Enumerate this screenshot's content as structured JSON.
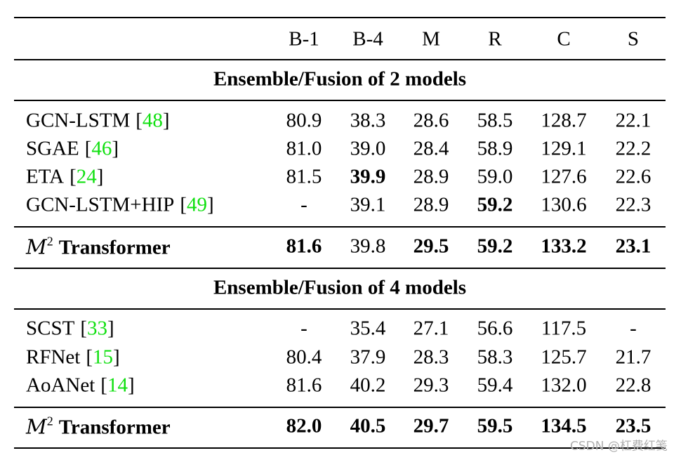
{
  "columns": [
    "B-1",
    "B-4",
    "M",
    "R",
    "C",
    "S"
  ],
  "sections": [
    {
      "title": "Ensemble/Fusion of 2 models",
      "rows": [
        {
          "name": "GCN-LSTM",
          "ref": "[48]",
          "cells": [
            "80.9",
            "38.3",
            "28.6",
            "58.5",
            "128.7",
            "22.1"
          ],
          "bold": [
            false,
            false,
            false,
            false,
            false,
            false
          ]
        },
        {
          "name": "SGAE",
          "ref": "[46]",
          "cells": [
            "81.0",
            "39.0",
            "28.4",
            "58.9",
            "129.1",
            "22.2"
          ],
          "bold": [
            false,
            false,
            false,
            false,
            false,
            false
          ]
        },
        {
          "name": "ETA",
          "ref": "[24]",
          "cells": [
            "81.5",
            "39.9",
            "28.9",
            "59.0",
            "127.6",
            "22.6"
          ],
          "bold": [
            false,
            true,
            false,
            false,
            false,
            false
          ]
        },
        {
          "name": "GCN-LSTM+HIP",
          "ref": "[49]",
          "cells": [
            "-",
            "39.1",
            "28.9",
            "59.2",
            "130.6",
            "22.3"
          ],
          "bold": [
            false,
            false,
            false,
            true,
            false,
            false
          ]
        }
      ],
      "ours": {
        "symbol": "M",
        "sup": "2",
        "name": "Transformer",
        "cells": [
          "81.6",
          "39.8",
          "29.5",
          "59.2",
          "133.2",
          "23.1"
        ],
        "bold": [
          true,
          false,
          true,
          true,
          true,
          true
        ]
      }
    },
    {
      "title": "Ensemble/Fusion of 4 models",
      "rows": [
        {
          "name": "SCST",
          "ref": "[33]",
          "cells": [
            "-",
            "35.4",
            "27.1",
            "56.6",
            "117.5",
            "-"
          ],
          "bold": [
            false,
            false,
            false,
            false,
            false,
            false
          ]
        },
        {
          "name": "RFNet",
          "ref": "[15]",
          "cells": [
            "80.4",
            "37.9",
            "28.3",
            "58.3",
            "125.7",
            "21.7"
          ],
          "bold": [
            false,
            false,
            false,
            false,
            false,
            false
          ]
        },
        {
          "name": "AoANet",
          "ref": "[14]",
          "cells": [
            "81.6",
            "40.2",
            "29.3",
            "59.4",
            "132.0",
            "22.8"
          ],
          "bold": [
            false,
            false,
            false,
            false,
            false,
            false
          ]
        }
      ],
      "ours": {
        "symbol": "M",
        "sup": "2",
        "name": "Transformer",
        "cells": [
          "82.0",
          "40.5",
          "29.7",
          "59.5",
          "134.5",
          "23.5"
        ],
        "bold": [
          true,
          true,
          true,
          true,
          true,
          true
        ]
      }
    }
  ],
  "watermark": "CSDN @杠费红笺"
}
